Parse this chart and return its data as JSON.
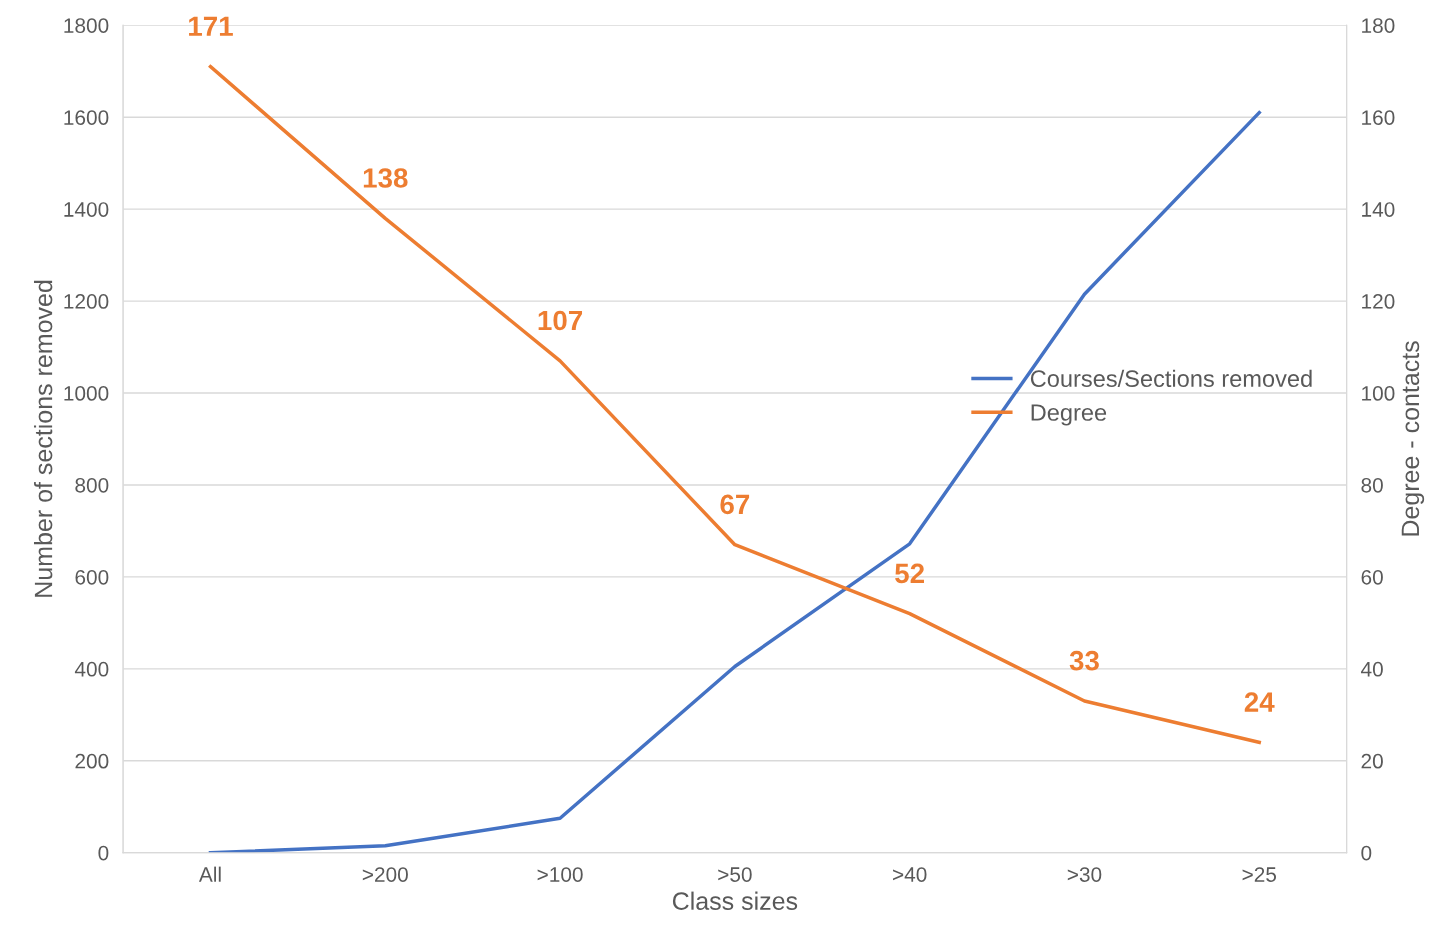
{
  "chart_data": {
    "type": "line",
    "xlabel": "Class sizes",
    "ylabel": "Number of sections removed",
    "y2label": "Degree - contacts",
    "categories": [
      "All",
      ">200",
      ">100",
      ">50",
      ">40",
      ">30",
      ">25"
    ],
    "series": [
      {
        "name": "Courses/Sections removed",
        "color": "#4472c4",
        "values": [
          0,
          15,
          75,
          405,
          672,
          1215,
          1610
        ]
      },
      {
        "name": "Degree",
        "color": "#ed7d31",
        "axis": "y2",
        "values": [
          171,
          138,
          107,
          67,
          52,
          33,
          24
        ],
        "value_labels": [
          "171",
          "138",
          "107",
          "67",
          "52",
          "33",
          "24"
        ]
      }
    ],
    "ylim": [
      0,
      1800
    ],
    "yticks": [
      0,
      200,
      400,
      600,
      800,
      1000,
      1200,
      1400,
      1600,
      1800
    ],
    "y2lim": [
      0,
      180
    ],
    "y2ticks": [
      0,
      20,
      40,
      60,
      80,
      100,
      120,
      140,
      160,
      180
    ],
    "grid": "y",
    "legend": "right",
    "marker": "none",
    "line_style": "solid"
  }
}
